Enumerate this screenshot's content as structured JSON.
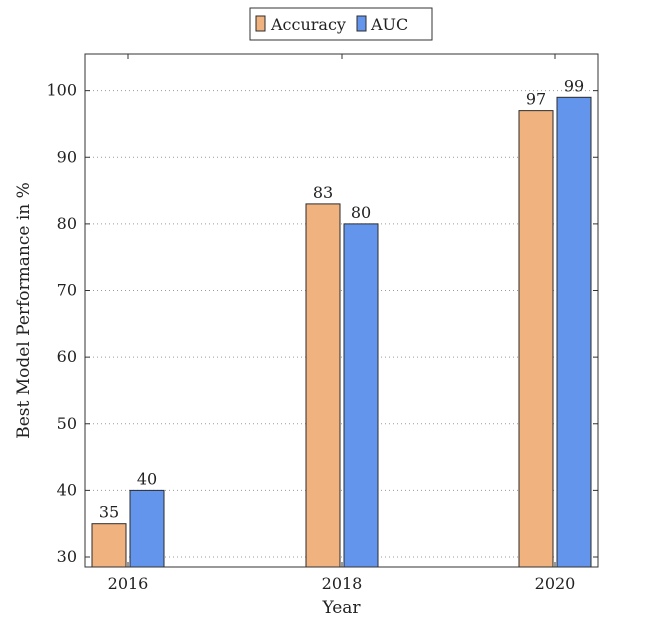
{
  "chart_data": {
    "type": "bar",
    "categories": [
      "2016",
      "2018",
      "2020"
    ],
    "series": [
      {
        "name": "Accuracy",
        "values": [
          35,
          83,
          97
        ],
        "color": "#f0b27f"
      },
      {
        "name": "AUC",
        "values": [
          40,
          80,
          99
        ],
        "color": "#6495ed"
      }
    ],
    "xlabel": "Year",
    "ylabel": "Best Model Performance in %",
    "ylim": [
      28.5,
      105.5
    ],
    "yticks": [
      30,
      40,
      50,
      60,
      70,
      80,
      90,
      100
    ],
    "grid": "horizontal-dotted",
    "legend_position": "top-center"
  }
}
